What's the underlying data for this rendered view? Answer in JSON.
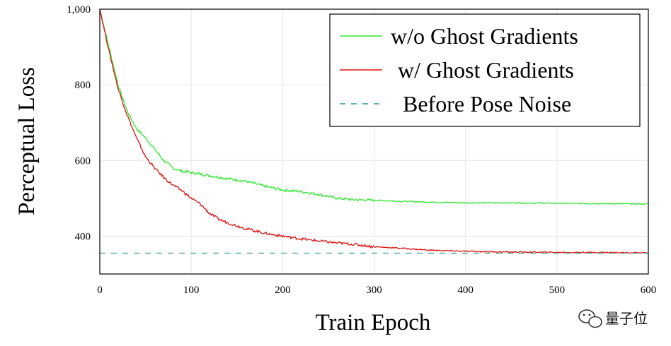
{
  "chart_data": {
    "type": "line",
    "xlabel": "Train Epoch",
    "ylabel": "Perceptual Loss",
    "xlim": [
      0,
      600
    ],
    "ylim": [
      300,
      1000
    ],
    "x_ticks": [
      "0",
      "100",
      "200",
      "300",
      "400",
      "500",
      "600"
    ],
    "y_ticks": [
      "400",
      "600",
      "800",
      "1,000"
    ],
    "grid": true,
    "legend_position": "top-right",
    "series": [
      {
        "name": "w/o Ghost Gradients",
        "color": "#2ee82e",
        "style": "solid",
        "x": [
          0,
          10,
          20,
          30,
          40,
          50,
          60,
          70,
          80,
          90,
          100,
          120,
          140,
          160,
          180,
          200,
          220,
          240,
          260,
          280,
          300,
          330,
          360,
          400,
          450,
          500,
          550,
          600
        ],
        "y": [
          1000,
          900,
          800,
          730,
          685,
          660,
          630,
          600,
          580,
          572,
          568,
          560,
          552,
          545,
          532,
          522,
          518,
          510,
          500,
          496,
          495,
          492,
          490,
          488,
          488,
          487,
          486,
          485
        ]
      },
      {
        "name": "w/ Ghost Gradients",
        "color": "#e01010",
        "style": "solid",
        "x": [
          0,
          10,
          20,
          30,
          40,
          50,
          60,
          70,
          80,
          90,
          100,
          110,
          120,
          130,
          140,
          160,
          180,
          200,
          220,
          240,
          260,
          280,
          300,
          330,
          360,
          400,
          450,
          500,
          550,
          600
        ],
        "y": [
          1000,
          890,
          790,
          720,
          660,
          610,
          580,
          555,
          535,
          520,
          500,
          485,
          460,
          445,
          435,
          420,
          408,
          400,
          393,
          387,
          382,
          378,
          372,
          368,
          363,
          360,
          358,
          357,
          357,
          356
        ]
      },
      {
        "name": "Before Pose Noise",
        "color": "#2a9d8f",
        "style": "dashed",
        "x": [
          0,
          600
        ],
        "y": [
          355,
          355
        ]
      }
    ]
  },
  "watermark": {
    "text": "量子位",
    "icon": "wechat-icon"
  }
}
